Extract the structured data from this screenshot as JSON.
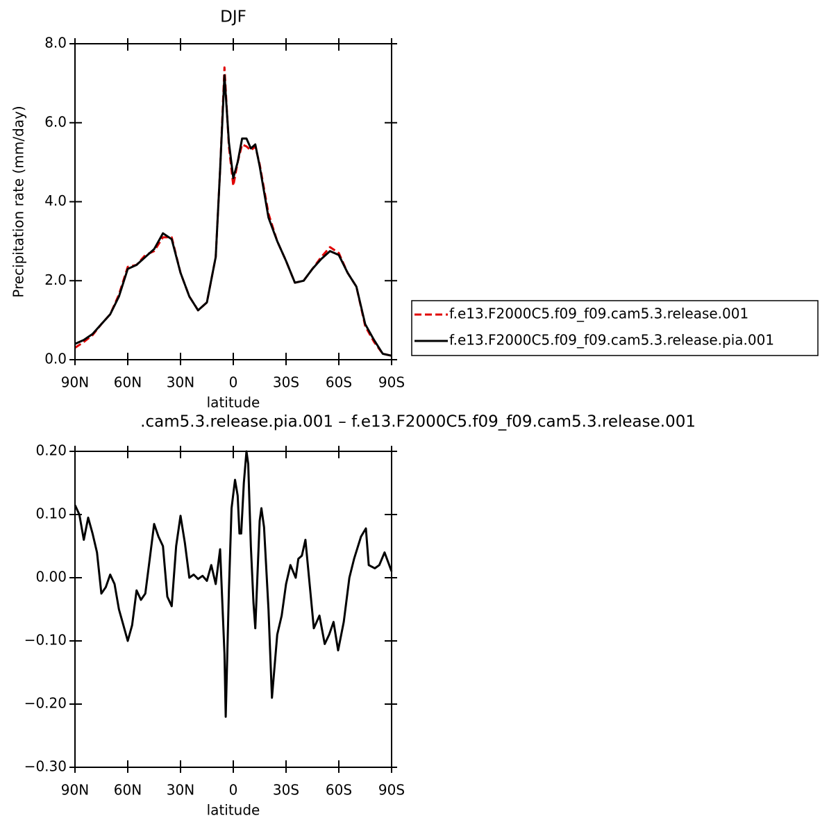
{
  "chart_data": [
    {
      "type": "line",
      "title": "DJF",
      "ylabel": "Precipitation rate (mm/day)",
      "xlabel": "latitude",
      "x": [
        90,
        85,
        80,
        75,
        70,
        65,
        60,
        55,
        50,
        45,
        40,
        35,
        30,
        25,
        20,
        15,
        10,
        7.5,
        5,
        2.5,
        0,
        -2.5,
        -5,
        -7.5,
        -10,
        -12.5,
        -15,
        -20,
        -25,
        -30,
        -35,
        -40,
        -45,
        -50,
        -55,
        -60,
        -65,
        -70,
        -75,
        -80,
        -85,
        -90
      ],
      "series": [
        {
          "name": "f.e13.F2000C5.f09_f09.cam5.3.release.001",
          "color": "#e00000",
          "linestyle": "dashed",
          "values": [
            0.3,
            0.45,
            0.62,
            0.9,
            1.15,
            1.65,
            2.35,
            2.4,
            2.65,
            2.75,
            3.1,
            3.1,
            2.2,
            1.6,
            1.25,
            1.45,
            2.6,
            4.8,
            7.4,
            5.4,
            4.4,
            5.0,
            5.45,
            5.4,
            5.3,
            5.4,
            4.95,
            3.7,
            3.0,
            2.5,
            1.95,
            2.0,
            2.3,
            2.6,
            2.85,
            2.7,
            2.2,
            1.85,
            0.85,
            0.45,
            0.15,
            0.1
          ]
        },
        {
          "name": "f.e13.F2000C5.f09_f09.cam5.3.release.pia.001",
          "color": "#000000",
          "linestyle": "solid",
          "values": [
            0.4,
            0.5,
            0.65,
            0.9,
            1.15,
            1.6,
            2.3,
            2.4,
            2.6,
            2.8,
            3.2,
            3.05,
            2.2,
            1.6,
            1.25,
            1.45,
            2.6,
            4.8,
            7.2,
            5.5,
            4.6,
            5.0,
            5.6,
            5.6,
            5.35,
            5.45,
            4.9,
            3.6,
            3.0,
            2.5,
            1.95,
            2.0,
            2.3,
            2.55,
            2.75,
            2.65,
            2.2,
            1.85,
            0.9,
            0.5,
            0.15,
            0.1
          ]
        }
      ],
      "xlim": [
        90,
        -90
      ],
      "xticks": [
        {
          "value": 90,
          "label": "90N"
        },
        {
          "value": 60,
          "label": "60N"
        },
        {
          "value": 30,
          "label": "30N"
        },
        0,
        {
          "value": -30,
          "label": "30S"
        },
        {
          "value": -60,
          "label": "60S"
        },
        {
          "value": -90,
          "label": "90S"
        }
      ],
      "ylim": [
        0,
        8
      ],
      "yticks": [
        {
          "value": 0,
          "label": "0.0"
        },
        {
          "value": 2,
          "label": "2.0"
        },
        {
          "value": 4,
          "label": "4.0"
        },
        {
          "value": 6,
          "label": "6.0"
        },
        {
          "value": 8,
          "label": "8.0"
        }
      ],
      "legend": "right"
    },
    {
      "type": "line",
      "title": ".cam5.3.release.pia.001 – f.e13.F2000C5.f09_f09.cam5.3.release.001",
      "xlabel": "latitude",
      "x": [
        90,
        87.5,
        85,
        82.5,
        80,
        77.5,
        75,
        72.5,
        70,
        67.5,
        65,
        62.5,
        60,
        57.5,
        55,
        52.5,
        50,
        47.5,
        45,
        42.5,
        40,
        37.5,
        35,
        32.5,
        30,
        27.5,
        25,
        22.5,
        20,
        17.5,
        15,
        12.5,
        10,
        7.5,
        5,
        4.3,
        2.5,
        1,
        -1,
        -2.5,
        -3.5,
        -4.5,
        -6,
        -7.5,
        -8.5,
        -10,
        -11.5,
        -12.5,
        -15,
        -16,
        -17.5,
        -20,
        -22,
        -25,
        -27.5,
        -30,
        -32.5,
        -35.5,
        -37,
        -39,
        -41,
        -45.8,
        -49,
        -52,
        -54.5,
        -57,
        -59.6,
        -62.8,
        -66,
        -68.7,
        -72.6,
        -75.4,
        -77,
        -80.5,
        -83,
        -86,
        -90
      ],
      "values": [
        0.115,
        0.1,
        0.06,
        0.095,
        0.07,
        0.04,
        -0.025,
        -0.015,
        0.005,
        -0.01,
        -0.05,
        -0.075,
        -0.1,
        -0.075,
        -0.02,
        -0.035,
        -0.025,
        0.03,
        0.085,
        0.065,
        0.05,
        -0.03,
        -0.045,
        0.05,
        0.098,
        0.055,
        0.0,
        0.005,
        -0.002,
        0.003,
        -0.005,
        0.02,
        -0.01,
        0.045,
        -0.12,
        -0.22,
        -0.02,
        0.11,
        0.155,
        0.13,
        0.07,
        0.07,
        0.15,
        0.2,
        0.18,
        0.05,
        -0.04,
        -0.08,
        0.09,
        0.11,
        0.08,
        -0.05,
        -0.19,
        -0.09,
        -0.06,
        -0.01,
        0.02,
        0.0,
        0.03,
        0.035,
        0.06,
        -0.08,
        -0.06,
        -0.105,
        -0.09,
        -0.07,
        -0.115,
        -0.07,
        0.0,
        0.03,
        0.065,
        0.078,
        0.02,
        0.015,
        0.02,
        0.04,
        0.01
      ],
      "color": "#000000",
      "xlim": [
        90,
        -90
      ],
      "xticks": [
        {
          "value": 90,
          "label": "90N"
        },
        {
          "value": 60,
          "label": "60N"
        },
        {
          "value": 30,
          "label": "30N"
        },
        0,
        {
          "value": -30,
          "label": "30S"
        },
        {
          "value": -60,
          "label": "60S"
        },
        {
          "value": -90,
          "label": "90S"
        }
      ],
      "ylim": [
        -0.3,
        0.2
      ],
      "yticks": [
        {
          "value": -0.3,
          "label": "−0.30"
        },
        {
          "value": -0.2,
          "label": "−0.20"
        },
        {
          "value": -0.1,
          "label": "−0.10"
        },
        {
          "value": 0,
          "label": "0.00"
        },
        {
          "value": 0.1,
          "label": "0.10"
        },
        {
          "value": 0.2,
          "label": "0.20"
        }
      ]
    }
  ]
}
